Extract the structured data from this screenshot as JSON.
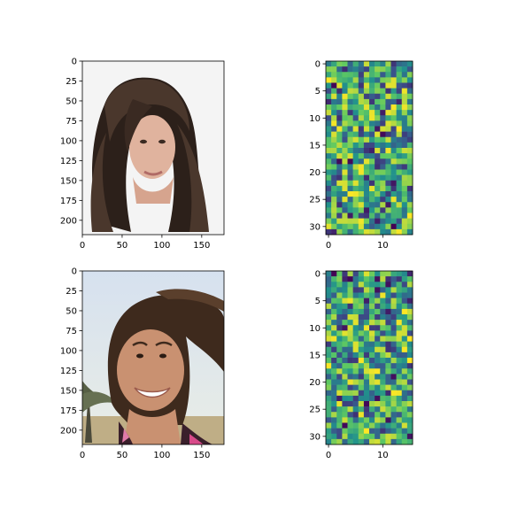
{
  "figure": {
    "panels": [
      {
        "kind": "photo",
        "subject": "woman with long dark brown hair",
        "colors": {
          "bg": "#f4f4f4",
          "skin": "#e0b39e",
          "hair": "#4a372c",
          "hair_dark": "#2c201a"
        }
      },
      {
        "kind": "noise-heatmap"
      },
      {
        "kind": "photo",
        "subject": "smiling girl with windswept brown hair on a beach",
        "colors": {
          "sky": "#d6e1ef",
          "sky_low": "#e9ede6",
          "skin": "#c99171",
          "hair": "#3e2a1d",
          "palm": "#576045",
          "sand": "#bfae86",
          "shirt": "#3a1f2b"
        }
      },
      {
        "kind": "noise-heatmap"
      }
    ]
  },
  "chart_data": [
    {
      "type": "image",
      "image_shape": [
        218,
        178
      ],
      "x_ticks": [
        "0",
        "50",
        "100",
        "150"
      ],
      "y_ticks": [
        "0",
        "25",
        "50",
        "75",
        "100",
        "125",
        "150",
        "175",
        "200"
      ]
    },
    {
      "type": "heatmap",
      "colormap": "viridis",
      "shape": [
        32,
        16
      ],
      "values_note": "random noise grid, values approximately uniform 0-1",
      "seed": 17,
      "x_ticks": [
        "0",
        "10"
      ],
      "y_ticks": [
        "0",
        "5",
        "10",
        "15",
        "20",
        "25",
        "30"
      ]
    },
    {
      "type": "image",
      "image_shape": [
        218,
        178
      ],
      "x_ticks": [
        "0",
        "50",
        "100",
        "150"
      ],
      "y_ticks": [
        "0",
        "25",
        "50",
        "75",
        "100",
        "125",
        "150",
        "175",
        "200"
      ]
    },
    {
      "type": "heatmap",
      "colormap": "viridis",
      "shape": [
        32,
        16
      ],
      "values_note": "random noise grid, values approximately uniform 0-1",
      "seed": 91,
      "x_ticks": [
        "0",
        "10"
      ],
      "y_ticks": [
        "0",
        "5",
        "10",
        "15",
        "20",
        "25",
        "30"
      ]
    }
  ]
}
